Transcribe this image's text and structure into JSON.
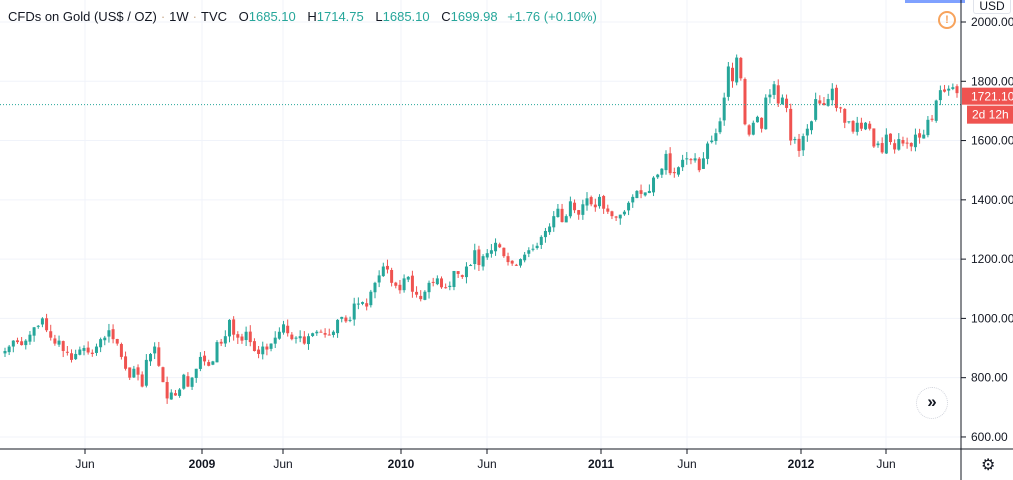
{
  "legend": {
    "symbol": "CFDs on Gold (US$ / OZ)",
    "interval": "1W",
    "source": "TVC",
    "open_label": "O",
    "open": "1685.10",
    "high_label": "H",
    "high": "1714.75",
    "low_label": "L",
    "low": "1685.10",
    "close_label": "C",
    "close": "1699.98",
    "change": "+1.76 (+0.10%)"
  },
  "currency": "USD",
  "price_label": "1721.10",
  "countdown": "2d 12h",
  "colors": {
    "up": "#26a69a",
    "down": "#ef5350",
    "grid": "#f0f3fa",
    "price_line": "#26a69a",
    "warning": "#f7a35c"
  },
  "icons": {
    "warning": "warning-circle-icon",
    "scroll": "double-chevron-right-icon",
    "settings": "gear-icon"
  },
  "chart_data": {
    "type": "candlestick",
    "title": "CFDs on Gold (US$ / OZ) · 1W · TVC",
    "ylim": [
      560,
      2000
    ],
    "y_ticks": [
      "600.00",
      "800.00",
      "1000.00",
      "1200.00",
      "1400.00",
      "1600.00",
      "1800.00",
      "2000.00"
    ],
    "x_ticks": [
      "Jun",
      "2009",
      "Jun",
      "2010",
      "Jun",
      "2011",
      "Jun",
      "2012",
      "Jun"
    ],
    "current_price": 1721.1,
    "grid": true,
    "weekly_close": [
      890,
      905,
      925,
      920,
      910,
      925,
      945,
      970,
      975,
      1000,
      960,
      935,
      915,
      925,
      890,
      885,
      860,
      880,
      895,
      900,
      885,
      880,
      905,
      930,
      935,
      960,
      930,
      915,
      870,
      830,
      800,
      830,
      810,
      770,
      860,
      880,
      905,
      840,
      785,
      730,
      750,
      740,
      760,
      810,
      770,
      800,
      830,
      870,
      855,
      840,
      855,
      920,
      915,
      940,
      995,
      945,
      935,
      925,
      955,
      920,
      890,
      880,
      905,
      895,
      915,
      935,
      955,
      980,
      950,
      930,
      935,
      940,
      915,
      940,
      950,
      955,
      955,
      945,
      945,
      955,
      995,
      1005,
      990,
      995,
      1050,
      1050,
      1055,
      1040,
      1090,
      1120,
      1145,
      1175,
      1165,
      1120,
      1110,
      1095,
      1135,
      1140,
      1090,
      1080,
      1065,
      1090,
      1120,
      1120,
      1135,
      1105,
      1105,
      1110,
      1160,
      1150,
      1140,
      1175,
      1180,
      1230,
      1180,
      1210,
      1220,
      1230,
      1255,
      1240,
      1210,
      1190,
      1185,
      1180,
      1200,
      1215,
      1230,
      1235,
      1245,
      1275,
      1295,
      1310,
      1345,
      1370,
      1325,
      1345,
      1395,
      1365,
      1350,
      1385,
      1405,
      1385,
      1375,
      1410,
      1370,
      1360,
      1345,
      1340,
      1350,
      1360,
      1390,
      1410,
      1430,
      1420,
      1425,
      1430,
      1475,
      1485,
      1505,
      1555,
      1490,
      1490,
      1510,
      1535,
      1540,
      1535,
      1540,
      1500,
      1540,
      1590,
      1600,
      1625,
      1665,
      1745,
      1850,
      1800,
      1880,
      1810,
      1655,
      1620,
      1660,
      1680,
      1640,
      1745,
      1755,
      1790,
      1725,
      1745,
      1710,
      1600,
      1605,
      1565,
      1615,
      1640,
      1665,
      1740,
      1725,
      1720,
      1740,
      1775,
      1710,
      1710,
      1660,
      1665,
      1630,
      1660,
      1640,
      1660,
      1640,
      1580,
      1590,
      1560,
      1620,
      1595,
      1570,
      1605,
      1590,
      1590,
      1580,
      1620,
      1610,
      1620,
      1670,
      1670,
      1735,
      1770,
      1765,
      1775,
      1780,
      1760
    ]
  }
}
